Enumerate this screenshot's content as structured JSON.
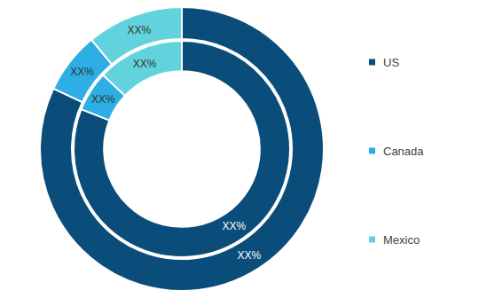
{
  "chart_data": {
    "type": "pie",
    "categories": [
      "US",
      "Canada",
      "Mexico"
    ],
    "colors": [
      "#0b4d7a",
      "#2eaee4",
      "#62d3dc"
    ],
    "data_labels": true,
    "series": [
      {
        "values": [
          82,
          7,
          11
        ],
        "value_labels": [
          "XX%",
          "XX%",
          "XX%"
        ]
      },
      {
        "values": [
          81,
          6,
          13
        ],
        "value_labels": [
          "XX%",
          "XX%",
          "XX%"
        ]
      }
    ]
  }
}
